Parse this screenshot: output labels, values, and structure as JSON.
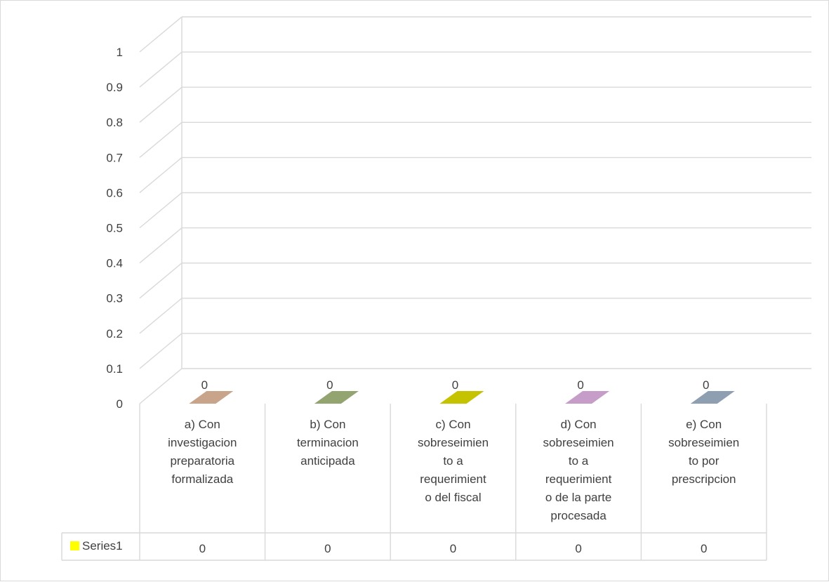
{
  "chart_data": {
    "type": "bar",
    "style": "3d-column",
    "title": "",
    "xlabel": "",
    "ylabel": "",
    "ylim": [
      0,
      1
    ],
    "yticks": [
      "0",
      "0.1",
      "0.2",
      "0.3",
      "0.4",
      "0.5",
      "0.6",
      "0.7",
      "0.8",
      "0.9",
      "1"
    ],
    "categories": [
      "a) Con investigacion preparatoria formalizada",
      "b) Con terminacion anticipada",
      "c) Con sobreseimiento a requerimiento del fiscal",
      "d) Con sobreseimiento a requerimiento de la parte procesada",
      "e) Con sobreseimiento por prescripcion"
    ],
    "category_label_lines": [
      [
        "a) Con",
        "investigacion",
        "preparatoria",
        "formalizada"
      ],
      [
        "b) Con",
        "terminacion",
        "anticipada"
      ],
      [
        "c) Con",
        "sobreseimien",
        "to a",
        "requerimient",
        "o del fiscal"
      ],
      [
        "d) Con",
        "sobreseimien",
        "to a",
        "requerimient",
        "o de la parte",
        "procesada"
      ],
      [
        "e) Con",
        "sobreseimien",
        "to por",
        "prescripcion"
      ]
    ],
    "series": [
      {
        "name": "Series1",
        "values": [
          0,
          0,
          0,
          0,
          0
        ],
        "legend_color": "#ffff00"
      }
    ],
    "data_labels": [
      "0",
      "0",
      "0",
      "0",
      "0"
    ],
    "bar_colors": [
      "#c8a48a",
      "#93a471",
      "#c5c200",
      "#c59dc8",
      "#8e9fb2"
    ],
    "grid": true,
    "legend": "data-table",
    "data_table": true
  }
}
